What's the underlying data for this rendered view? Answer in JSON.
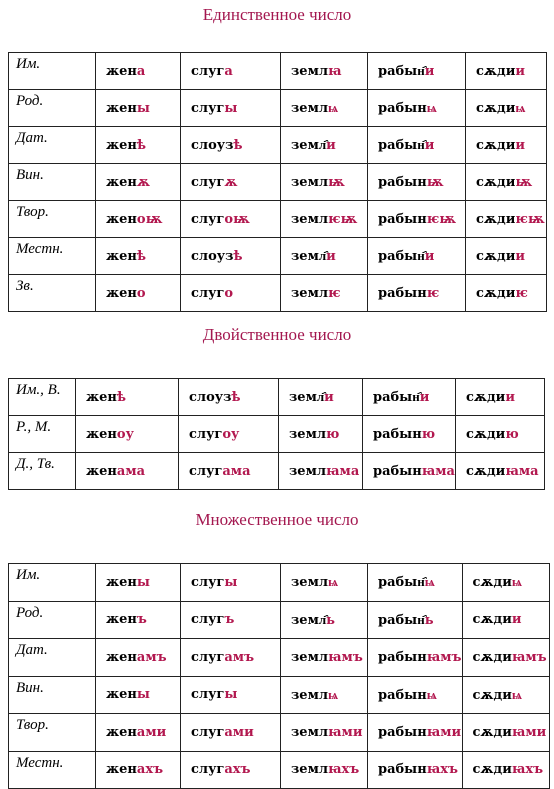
{
  "sections": [
    {
      "title": "Единственное число",
      "rows": [
        {
          "case": "Им.",
          "forms": [
            {
              "stem": "жен",
              "ending": "а"
            },
            {
              "stem": "слуг",
              "ending": "а"
            },
            {
              "stem": "земл",
              "ending": "ꙗ"
            },
            {
              "stem": "рабын҄",
              "ending": "и"
            },
            {
              "stem": "сѫди",
              "ending": "и"
            }
          ]
        },
        {
          "case": "Род.",
          "forms": [
            {
              "stem": "жен",
              "ending": "ы"
            },
            {
              "stem": "слуг",
              "ending": "ы"
            },
            {
              "stem": "земл",
              "ending": "ѩ"
            },
            {
              "stem": "рабын",
              "ending": "ѩ"
            },
            {
              "stem": "сѫди",
              "ending": "ѩ"
            }
          ]
        },
        {
          "case": "Дат.",
          "forms": [
            {
              "stem": "жен",
              "ending": "ѣ"
            },
            {
              "stem": "слоуз",
              "ending": "ѣ"
            },
            {
              "stem": "земл҄",
              "ending": "и"
            },
            {
              "stem": "рабын҄",
              "ending": "и"
            },
            {
              "stem": "сѫди",
              "ending": "и"
            }
          ]
        },
        {
          "case": "Вин.",
          "forms": [
            {
              "stem": "жен",
              "ending": "ѫ"
            },
            {
              "stem": "слуг",
              "ending": "ѫ"
            },
            {
              "stem": "земл",
              "ending": "ѭ"
            },
            {
              "stem": "рабын",
              "ending": "ѭ"
            },
            {
              "stem": "сѫди",
              "ending": "ѭ"
            }
          ]
        },
        {
          "case": "Твор.",
          "forms": [
            {
              "stem": "жен",
              "ending": "оѭ"
            },
            {
              "stem": "слуг",
              "ending": "оѭ"
            },
            {
              "stem": "земл",
              "ending": "ѥѭ"
            },
            {
              "stem": "рабын",
              "ending": "ѥѭ"
            },
            {
              "stem": "сѫди",
              "ending": "ѥѭ"
            }
          ]
        },
        {
          "case": "Местн.",
          "forms": [
            {
              "stem": "жен",
              "ending": "ѣ"
            },
            {
              "stem": "слоуз",
              "ending": "ѣ"
            },
            {
              "stem": "земл҄",
              "ending": "и"
            },
            {
              "stem": "рабын҄",
              "ending": "и"
            },
            {
              "stem": "сѫди",
              "ending": "и"
            }
          ]
        },
        {
          "case": "Зв.",
          "forms": [
            {
              "stem": "жен",
              "ending": "о"
            },
            {
              "stem": "слуг",
              "ending": "о"
            },
            {
              "stem": "земл",
              "ending": "ѥ"
            },
            {
              "stem": "рабын",
              "ending": "ѥ"
            },
            {
              "stem": "сѫди",
              "ending": "ѥ"
            }
          ]
        }
      ]
    },
    {
      "title": "Двойственное число",
      "rows": [
        {
          "case": "Им., В.",
          "forms": [
            {
              "stem": "жен",
              "ending": "ѣ"
            },
            {
              "stem": "слоуз",
              "ending": "ѣ"
            },
            {
              "stem": "земл҄",
              "ending": "и"
            },
            {
              "stem": "рабын҄",
              "ending": "и"
            },
            {
              "stem": "сѫди",
              "ending": "и"
            }
          ]
        },
        {
          "case": "Р., М.",
          "forms": [
            {
              "stem": "жен",
              "ending": "оу"
            },
            {
              "stem": "слуг",
              "ending": "оу"
            },
            {
              "stem": "земл",
              "ending": "ю"
            },
            {
              "stem": "рабын",
              "ending": "ю"
            },
            {
              "stem": "сѫди",
              "ending": "ю"
            }
          ]
        },
        {
          "case": "Д., Тв.",
          "forms": [
            {
              "stem": "жен",
              "ending": "ама"
            },
            {
              "stem": "слуг",
              "ending": "ама"
            },
            {
              "stem": "земл",
              "ending": "ꙗма"
            },
            {
              "stem": "рабын",
              "ending": "ꙗма"
            },
            {
              "stem": "сѫди",
              "ending": "ꙗма"
            }
          ]
        }
      ]
    },
    {
      "title": "Множественное число",
      "rows": [
        {
          "case": "Им.",
          "forms": [
            {
              "stem": "жен",
              "ending": "ы"
            },
            {
              "stem": "слуг",
              "ending": "ы"
            },
            {
              "stem": "земл",
              "ending": "ѩ"
            },
            {
              "stem": "рабын҄",
              "ending": "ѩ"
            },
            {
              "stem": "сѫди",
              "ending": "ѩ"
            }
          ]
        },
        {
          "case": "Род.",
          "forms": [
            {
              "stem": "жен",
              "ending": "ъ"
            },
            {
              "stem": "слуг",
              "ending": "ъ"
            },
            {
              "stem": "земл҄",
              "ending": "ь"
            },
            {
              "stem": "рабын҄",
              "ending": "ь"
            },
            {
              "stem": "сѫди",
              "ending": "и"
            }
          ]
        },
        {
          "case": "Дат.",
          "forms": [
            {
              "stem": "жен",
              "ending": "амъ"
            },
            {
              "stem": "слуг",
              "ending": "амъ"
            },
            {
              "stem": "земл",
              "ending": "ꙗмъ"
            },
            {
              "stem": "рабын",
              "ending": "ꙗмъ"
            },
            {
              "stem": "сѫди",
              "ending": "ꙗмъ"
            }
          ]
        },
        {
          "case": "Вин.",
          "forms": [
            {
              "stem": "жен",
              "ending": "ы"
            },
            {
              "stem": "слуг",
              "ending": "ы"
            },
            {
              "stem": "земл",
              "ending": "ѩ"
            },
            {
              "stem": "рабын",
              "ending": "ѩ"
            },
            {
              "stem": "сѫди",
              "ending": "ѩ"
            }
          ]
        },
        {
          "case": "Твор.",
          "forms": [
            {
              "stem": "жен",
              "ending": "ами"
            },
            {
              "stem": "слуг",
              "ending": "ами"
            },
            {
              "stem": "земл",
              "ending": "ꙗми"
            },
            {
              "stem": "рабын",
              "ending": "ꙗми"
            },
            {
              "stem": "сѫди",
              "ending": "ꙗми"
            }
          ]
        },
        {
          "case": "Местн.",
          "forms": [
            {
              "stem": "жен",
              "ending": "ахъ"
            },
            {
              "stem": "слуг",
              "ending": "ахъ"
            },
            {
              "stem": "земл",
              "ending": "ꙗхъ"
            },
            {
              "stem": "рабын",
              "ending": "ꙗхъ"
            },
            {
              "stem": "сѫди",
              "ending": "ꙗхъ"
            }
          ]
        }
      ]
    }
  ]
}
